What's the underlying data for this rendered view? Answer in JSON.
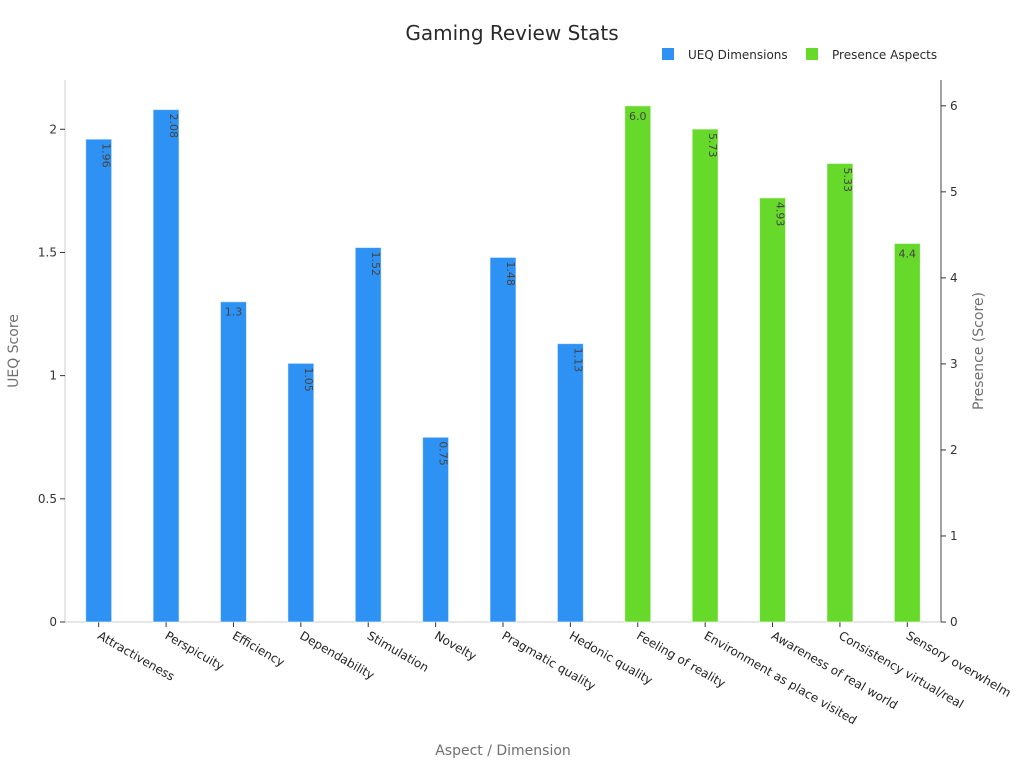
{
  "chart_data": {
    "type": "bar",
    "title": "Gaming Review Stats",
    "xlabel": "Aspect / Dimension",
    "categories": [
      "Attractiveness",
      "Perspicuity",
      "Efficiency",
      "Dependability",
      "Stimulation",
      "Novelty",
      "Pragmatic quality",
      "Hedonic quality",
      "Feeling of reality",
      "Environment as place visited",
      "Awareness of real world",
      "Consistency virtual/real",
      "Sensory overwhelm"
    ],
    "series": [
      {
        "name": "UEQ Dimensions",
        "axis": "left",
        "color": "#2e92f5",
        "values": [
          1.96,
          2.08,
          1.3,
          1.05,
          1.52,
          0.75,
          1.48,
          1.13,
          null,
          null,
          null,
          null,
          null
        ],
        "labels": [
          "1.96",
          "2.08",
          "1.3",
          "1.05",
          "1.52",
          "0.75",
          "1.48",
          "1.13",
          "",
          "",
          "",
          "",
          ""
        ]
      },
      {
        "name": "Presence Aspects",
        "axis": "right",
        "color": "#66d92a",
        "values": [
          null,
          null,
          null,
          null,
          null,
          null,
          null,
          null,
          6.0,
          5.73,
          4.93,
          5.33,
          4.4
        ],
        "labels": [
          "",
          "",
          "",
          "",
          "",
          "",
          "",
          "",
          "6.0",
          "5.73",
          "4.93",
          "5.33",
          "4.4"
        ]
      }
    ],
    "y_left": {
      "label": "UEQ Score",
      "range": [
        0,
        2.2
      ],
      "ticks": [
        0,
        0.5,
        1,
        1.5,
        2
      ],
      "tick_labels": [
        "0",
        "0.5",
        "1",
        "1.5",
        "2"
      ]
    },
    "y_right": {
      "label": "Presence (Score)",
      "range": [
        0,
        6.3
      ],
      "ticks": [
        0,
        1,
        2,
        3,
        4,
        5,
        6
      ],
      "tick_labels": [
        "0",
        "1",
        "2",
        "3",
        "4",
        "5",
        "6"
      ]
    },
    "grid": false,
    "legend_position": "top-right"
  }
}
